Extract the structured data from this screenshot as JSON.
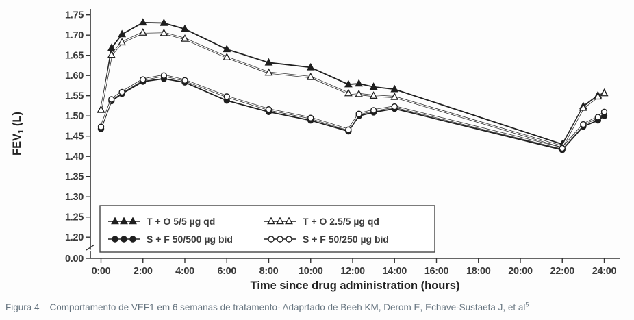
{
  "figure": {
    "caption_text": "Figura 4 – Comportamento de VEF1 em 6 semanas de tratamento- Adaprtado de Beeh KM, Derom E, Echave-Sustaeta J, et al",
    "caption_sup": "5",
    "caption_color": "#66747f"
  },
  "chart_data": {
    "type": "line",
    "title": "",
    "xlabel": "Time since drug administration (hours)",
    "ylabel": "FEV1 (L)",
    "ylabel_parts": {
      "main": "FEV",
      "sub": "1",
      "unit": " (L)"
    },
    "ylim": [
      1.2,
      1.75
    ],
    "axis_break_to_zero": true,
    "zero_tick_label": "0.00",
    "y_tick_values": [
      1.75,
      1.7,
      1.65,
      1.6,
      1.55,
      1.5,
      1.45,
      1.4,
      1.35,
      1.3,
      1.25,
      1.2
    ],
    "x_tick_hours": [
      0,
      2,
      4,
      6,
      8,
      10,
      12,
      14,
      16,
      18,
      20,
      22,
      24
    ],
    "x_tick_labels": [
      "0:00",
      "2:00",
      "4:00",
      "6:00",
      "8:00",
      "10:00",
      "12:00",
      "14:00",
      "16:00",
      "18:00",
      "20:00",
      "22:00",
      "24:00"
    ],
    "grid": false,
    "legend_position": "inside-bottom-left",
    "line_color": "#1f1f1f",
    "x_hours": [
      0,
      0.5,
      1,
      2,
      3,
      4,
      6,
      8,
      10,
      11.8,
      12.3,
      13,
      14,
      22,
      23,
      23.7,
      24
    ],
    "series": [
      {
        "name": "T + O 5/5 µg qd",
        "marker": "triangle-filled",
        "values": [
          1.515,
          1.668,
          1.702,
          1.731,
          1.73,
          1.715,
          1.665,
          1.632,
          1.62,
          1.578,
          1.58,
          1.572,
          1.566,
          1.43,
          1.524,
          1.551,
          1.557
        ]
      },
      {
        "name": "T + O 2.5/5 µg qd",
        "marker": "triangle-open",
        "values": [
          1.515,
          1.651,
          1.682,
          1.706,
          1.705,
          1.691,
          1.645,
          1.607,
          1.596,
          1.556,
          1.554,
          1.55,
          1.547,
          1.424,
          1.52,
          1.548,
          1.556
        ]
      },
      {
        "name": "S + F 50/500 µg bid",
        "marker": "circle-filled",
        "values": [
          1.468,
          1.537,
          1.555,
          1.585,
          1.592,
          1.583,
          1.538,
          1.51,
          1.489,
          1.462,
          1.5,
          1.509,
          1.518,
          1.416,
          1.474,
          1.489,
          1.5
        ]
      },
      {
        "name": "S + F 50/250 µg bid",
        "marker": "circle-open",
        "values": [
          1.473,
          1.541,
          1.559,
          1.59,
          1.6,
          1.588,
          1.548,
          1.516,
          1.495,
          1.466,
          1.505,
          1.514,
          1.523,
          1.42,
          1.479,
          1.497,
          1.51
        ]
      }
    ],
    "legend_columns": [
      [
        0,
        2
      ],
      [
        1,
        3
      ]
    ]
  }
}
